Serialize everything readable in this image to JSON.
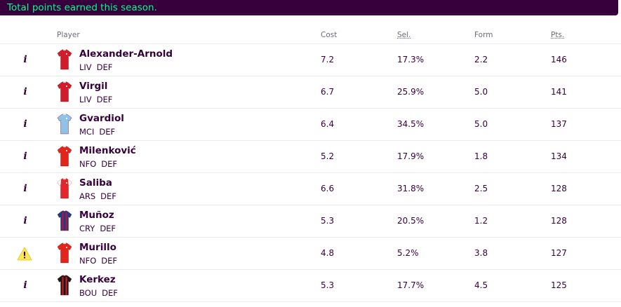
{
  "banner": {
    "text": "Total points earned this season."
  },
  "header": {
    "player": "Player",
    "cost": "Cost",
    "sel": "Sel.",
    "form": "Form",
    "pts": "Pts."
  },
  "colors": {
    "banner_bg": "#37003c",
    "banner_text": "#00ff87",
    "warning": "#ffe65b"
  },
  "players": [
    {
      "status_icon": "info-icon",
      "kit": {
        "color": "#d11c2b",
        "accent": "#ffffff",
        "style": "plain"
      },
      "name": "Alexander-Arnold",
      "team": "LIV",
      "position": "DEF",
      "cost": "7.2",
      "selected": "17.3%",
      "form": "2.2",
      "points": "146"
    },
    {
      "status_icon": "info-icon",
      "kit": {
        "color": "#d11c2b",
        "accent": "#ffffff",
        "style": "plain"
      },
      "name": "Virgil",
      "team": "LIV",
      "position": "DEF",
      "cost": "6.7",
      "selected": "25.9%",
      "form": "5.0",
      "points": "141"
    },
    {
      "status_icon": "info-icon",
      "kit": {
        "color": "#8ec2e8",
        "accent": "#ffffff",
        "style": "plain"
      },
      "name": "Gvardiol",
      "team": "MCI",
      "position": "DEF",
      "cost": "6.4",
      "selected": "34.5%",
      "form": "5.0",
      "points": "137"
    },
    {
      "status_icon": "info-icon",
      "kit": {
        "color": "#e1251b",
        "accent": "#ffffff",
        "style": "plain"
      },
      "name": "Milenković",
      "team": "NFO",
      "position": "DEF",
      "cost": "5.2",
      "selected": "17.9%",
      "form": "1.8",
      "points": "134"
    },
    {
      "status_icon": "info-icon",
      "kit": {
        "color": "#e2262b",
        "accent": "#ffffff",
        "style": "white-sleeves"
      },
      "name": "Saliba",
      "team": "ARS",
      "position": "DEF",
      "cost": "6.6",
      "selected": "31.8%",
      "form": "2.5",
      "points": "128"
    },
    {
      "status_icon": "info-icon",
      "kit": {
        "color": "#1b3b8c",
        "accent": "#c8102e",
        "style": "stripes"
      },
      "name": "Muñoz",
      "team": "CRY",
      "position": "DEF",
      "cost": "5.3",
      "selected": "20.5%",
      "form": "1.2",
      "points": "128"
    },
    {
      "status_icon": "warning-icon",
      "kit": {
        "color": "#e1251b",
        "accent": "#ffffff",
        "style": "plain"
      },
      "name": "Murillo",
      "team": "NFO",
      "position": "DEF",
      "cost": "4.8",
      "selected": "5.2%",
      "form": "3.8",
      "points": "127"
    },
    {
      "status_icon": "info-icon",
      "kit": {
        "color": "#1a1a1a",
        "accent": "#d71920",
        "style": "stripes"
      },
      "name": "Kerkez",
      "team": "BOU",
      "position": "DEF",
      "cost": "5.3",
      "selected": "17.7%",
      "form": "4.5",
      "points": "125"
    }
  ]
}
